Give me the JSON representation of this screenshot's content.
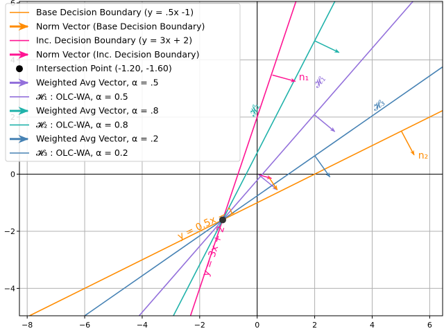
{
  "chart_data": {
    "type": "line",
    "title": "",
    "xlabel": "",
    "ylabel": "",
    "xlim": [
      -8.27,
      6.45
    ],
    "ylim": [
      -4.96,
      6.05
    ],
    "xticks": [
      -8,
      -6,
      -4,
      -2,
      0,
      2,
      4,
      6
    ],
    "xtick_labels": [
      "−8",
      "−6",
      "−4",
      "−2",
      "0",
      "2",
      "4",
      "6"
    ],
    "yticks": [
      -4,
      -2,
      0,
      2,
      4,
      6
    ],
    "ytick_labels": [
      "−4",
      "−2",
      "0",
      "2",
      "4",
      "6"
    ],
    "grid": true,
    "legend_position": "top-left",
    "intersection": [
      -1.2,
      -1.6
    ],
    "lines": [
      {
        "name": "Base Decision Boundary (y = .5x -1)",
        "slope": 0.5,
        "color": "#ff8c00"
      },
      {
        "name": "Inc. Decision Boundary (y = 3x + 2)",
        "slope": 3,
        "color": "#ff1493"
      },
      {
        "name": "H1: OLC-WA, α = 0.5",
        "slope": 1.156,
        "color": "#9370db"
      },
      {
        "name": "H2: OLC-WA, α = 0.8",
        "slope": 1.96,
        "color": "#20b2aa"
      },
      {
        "name": "H3: OLC-WA, α = 0.2",
        "slope": 0.7,
        "color": "#4682b4"
      }
    ],
    "arrows": [
      {
        "name": "n1",
        "from": [
          0.53,
          3.47
        ],
        "to": [
          1.33,
          3.25
        ],
        "color": "#ff1493"
      },
      {
        "name": "n2",
        "from": [
          5.02,
          1.5
        ],
        "to": [
          5.46,
          0.67
        ],
        "color": "#ff8c00"
      },
      {
        "name": "h1-vector",
        "from": [
          2,
          2.07
        ],
        "to": [
          2.7,
          1.49
        ],
        "color": "#9370db"
      },
      {
        "name": "h2-vector",
        "from": [
          2,
          4.67
        ],
        "to": [
          2.85,
          4.26
        ],
        "color": "#20b2aa"
      },
      {
        "name": "h3-vector",
        "from": [
          2,
          0.65
        ],
        "to": [
          2.53,
          -0.1
        ],
        "color": "#4682b4"
      },
      {
        "name": "origin-pink",
        "from": [
          0.05,
          -0.02
        ],
        "to": [
          0.5,
          -0.15
        ],
        "color": "#ff1493"
      },
      {
        "name": "origin-purple",
        "from": [
          0.05,
          -0.02
        ],
        "to": [
          0.7,
          -0.55
        ],
        "color": "#9370db"
      },
      {
        "name": "origin-orange",
        "from": [
          0.4,
          -0.1
        ],
        "to": [
          0.7,
          -0.55
        ],
        "color": "#ff8c00"
      }
    ],
    "annotations": [
      {
        "text": "n₁",
        "at": [
          1.45,
          3.28
        ],
        "color": "#ff1493",
        "rot": 0
      },
      {
        "text": "n₂",
        "at": [
          5.6,
          0.55
        ],
        "color": "#ff8c00",
        "rot": 0
      },
      {
        "text": "𝓗₁",
        "at": [
          2.1,
          3.0
        ],
        "color": "#9370db",
        "rot": -48
      },
      {
        "text": "𝓗₂",
        "at": [
          -0.1,
          2.0
        ],
        "color": "#20b2aa",
        "rot": -63
      },
      {
        "text": "𝓗₃",
        "at": [
          4.1,
          2.2
        ],
        "color": "#4682b4",
        "rot": -35
      },
      {
        "text": "y = 0.5x − 1",
        "at": [
          -2.7,
          -2.3
        ],
        "color": "#ff8c00",
        "rot": -26
      },
      {
        "text": "y = 3x + 2",
        "at": [
          -1.7,
          -3.6
        ],
        "color": "#ff1493",
        "rot": -72
      }
    ],
    "legend": [
      {
        "label": "Base Decision Boundary (y = .5x -1)",
        "kind": "line",
        "color": "#ff8c00"
      },
      {
        "label": "Norm Vector (Base Decision Boundary)",
        "kind": "arrow",
        "color": "#ff8c00"
      },
      {
        "label": "Inc. Decision Boundary (y = 3x + 2)",
        "kind": "line",
        "color": "#ff1493"
      },
      {
        "label": "Norm Vector (Inc. Decision Boundary)",
        "kind": "arrow",
        "color": "#ff1493"
      },
      {
        "label": "Intersection Point (-1.20, -1.60)",
        "kind": "dot",
        "color": "#000000"
      },
      {
        "label": "Weighted Avg Vector, α = .5",
        "kind": "arrow",
        "color": "#9370db"
      },
      {
        "label": "𝓗₁ :  OLC-WA, α = 0.5",
        "kind": "line",
        "color": "#9370db"
      },
      {
        "label": "Weighted Avg Vector, α = .8",
        "kind": "arrow",
        "color": "#20b2aa"
      },
      {
        "label": "𝓗₂ :  OLC-WA, α = 0.8",
        "kind": "line",
        "color": "#20b2aa"
      },
      {
        "label": "Weighted Avg Vector, α = .2",
        "kind": "arrow",
        "color": "#4682b4"
      },
      {
        "label": "𝓗₃ :  OLC-WA, α = 0.2",
        "kind": "line",
        "color": "#4682b4"
      }
    ]
  }
}
